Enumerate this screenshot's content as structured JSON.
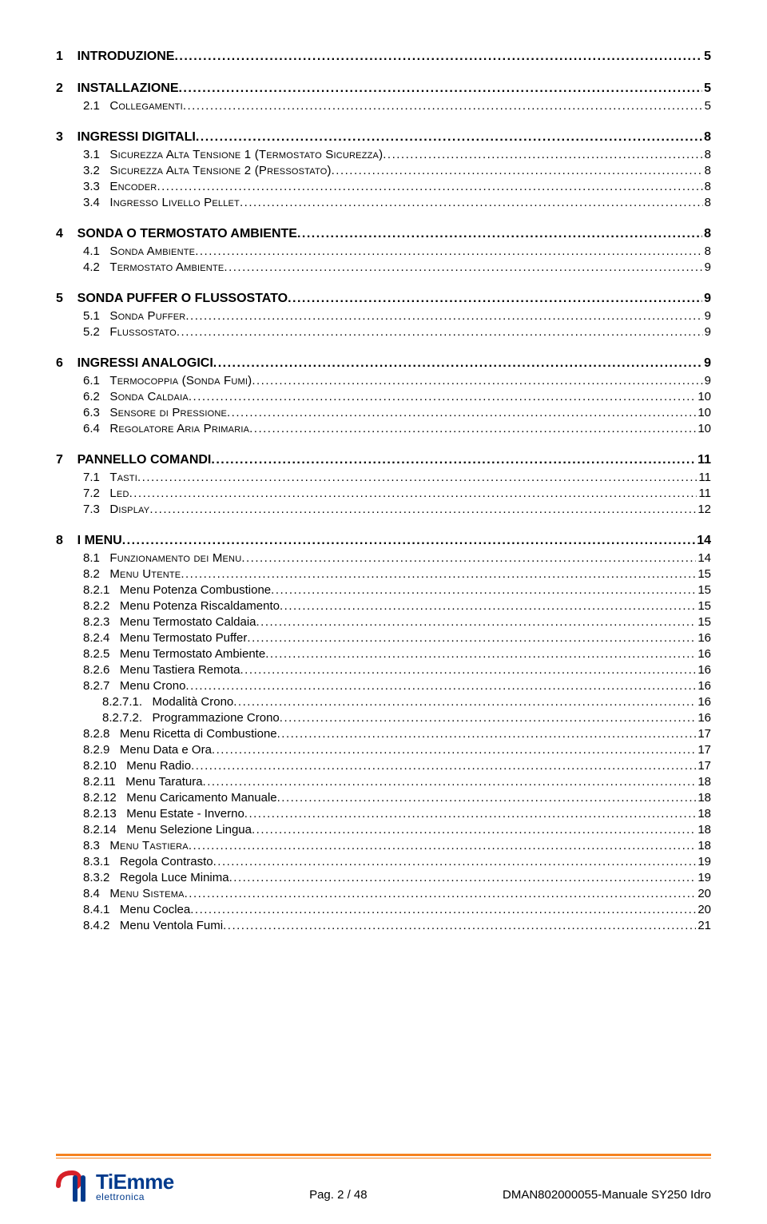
{
  "colors": {
    "text": "#000000",
    "background": "#ffffff",
    "accent_orange": "#f58220",
    "accent_red": "#d62028",
    "accent_blue": "#003a8c"
  },
  "typography": {
    "base_family": "Verdana, Tahoma, sans-serif",
    "lvl1_fontsize": 16,
    "lvl1_fontweight": "bold",
    "lvl2_fontsize": 15,
    "lvl3_fontsize": 15,
    "lvl4_fontsize": 15
  },
  "toc": [
    {
      "level": 1,
      "num": "1",
      "title": "INTRODUZIONE",
      "page": "5"
    },
    {
      "level": 1,
      "num": "2",
      "title": "INSTALLAZIONE",
      "page": "5"
    },
    {
      "level": 2,
      "num": "2.1",
      "title": "Collegamenti",
      "page": "5",
      "smallcaps": true
    },
    {
      "level": 1,
      "num": "3",
      "title": "INGRESSI DIGITALI",
      "page": "8"
    },
    {
      "level": 2,
      "num": "3.1",
      "title": "Sicurezza Alta Tensione 1 (Termostato Sicurezza)",
      "page": "8",
      "smallcaps": true
    },
    {
      "level": 2,
      "num": "3.2",
      "title": "Sicurezza Alta Tensione 2 (Pressostato)",
      "page": "8",
      "smallcaps": true
    },
    {
      "level": 2,
      "num": "3.3",
      "title": "Encoder",
      "page": "8",
      "smallcaps": true
    },
    {
      "level": 2,
      "num": "3.4",
      "title": "Ingresso Livello Pellet",
      "page": "8",
      "smallcaps": true
    },
    {
      "level": 1,
      "num": "4",
      "title": "SONDA O TERMOSTATO AMBIENTE",
      "page": "8"
    },
    {
      "level": 2,
      "num": "4.1",
      "title": "Sonda Ambiente",
      "page": "8",
      "smallcaps": true
    },
    {
      "level": 2,
      "num": "4.2",
      "title": "Termostato Ambiente",
      "page": "9",
      "smallcaps": true
    },
    {
      "level": 1,
      "num": "5",
      "title": "SONDA PUFFER O FLUSSOSTATO",
      "page": "9"
    },
    {
      "level": 2,
      "num": "5.1",
      "title": "Sonda Puffer",
      "page": "9",
      "smallcaps": true
    },
    {
      "level": 2,
      "num": "5.2",
      "title": "Flussostato",
      "page": "9",
      "smallcaps": true
    },
    {
      "level": 1,
      "num": "6",
      "title": "INGRESSI ANALOGICI",
      "page": "9"
    },
    {
      "level": 2,
      "num": "6.1",
      "title": "Termocoppia (Sonda Fumi)",
      "page": "9",
      "smallcaps": true
    },
    {
      "level": 2,
      "num": "6.2",
      "title": "Sonda Caldaia",
      "page": "10",
      "smallcaps": true
    },
    {
      "level": 2,
      "num": "6.3",
      "title": "Sensore di Pressione",
      "page": "10",
      "smallcaps": true
    },
    {
      "level": 2,
      "num": "6.4",
      "title": "Regolatore Aria Primaria",
      "page": "10",
      "smallcaps": true
    },
    {
      "level": 1,
      "num": "7",
      "title": "PANNELLO COMANDI",
      "page": "11"
    },
    {
      "level": 2,
      "num": "7.1",
      "title": "Tasti",
      "page": "11",
      "smallcaps": true
    },
    {
      "level": 2,
      "num": "7.2",
      "title": "Led",
      "page": "11",
      "smallcaps": true
    },
    {
      "level": 2,
      "num": "7.3",
      "title": "Display",
      "page": "12",
      "smallcaps": true
    },
    {
      "level": 1,
      "num": "8",
      "title": "I MENU",
      "page": "14"
    },
    {
      "level": 2,
      "num": "8.1",
      "title": "Funzionamento dei Menu",
      "page": "14",
      "smallcaps": true
    },
    {
      "level": 2,
      "num": "8.2",
      "title": "Menu Utente",
      "page": "15",
      "smallcaps": true
    },
    {
      "level": 3,
      "num": "8.2.1",
      "title": "Menu Potenza Combustione",
      "page": "15"
    },
    {
      "level": 3,
      "num": "8.2.2",
      "title": "Menu Potenza Riscaldamento",
      "page": "15"
    },
    {
      "level": 3,
      "num": "8.2.3",
      "title": "Menu Termostato Caldaia",
      "page": "15"
    },
    {
      "level": 3,
      "num": "8.2.4",
      "title": "Menu Termostato Puffer",
      "page": "16"
    },
    {
      "level": 3,
      "num": "8.2.5",
      "title": "Menu Termostato Ambiente",
      "page": "16"
    },
    {
      "level": 3,
      "num": "8.2.6",
      "title": "Menu Tastiera Remota",
      "page": "16"
    },
    {
      "level": 3,
      "num": "8.2.7",
      "title": "Menu Crono",
      "page": "16"
    },
    {
      "level": 4,
      "num": "8.2.7.1.",
      "title": "Modalità Crono",
      "page": "16"
    },
    {
      "level": 4,
      "num": "8.2.7.2.",
      "title": "Programmazione Crono",
      "page": "16"
    },
    {
      "level": 3,
      "num": "8.2.8",
      "title": "Menu Ricetta di Combustione",
      "page": "17"
    },
    {
      "level": 3,
      "num": "8.2.9",
      "title": "Menu Data e Ora",
      "page": "17"
    },
    {
      "level": 3,
      "num": "8.2.10",
      "title": "Menu Radio",
      "page": "17"
    },
    {
      "level": 3,
      "num": "8.2.11",
      "title": "Menu Taratura",
      "page": "18"
    },
    {
      "level": 3,
      "num": "8.2.12",
      "title": "Menu Caricamento Manuale",
      "page": "18"
    },
    {
      "level": 3,
      "num": "8.2.13",
      "title": "Menu Estate - Inverno",
      "page": "18"
    },
    {
      "level": 3,
      "num": "8.2.14",
      "title": "Menu Selezione Lingua",
      "page": "18"
    },
    {
      "level": 2,
      "num": "8.3",
      "title": "Menu Tastiera",
      "page": "18",
      "smallcaps": true
    },
    {
      "level": 3,
      "num": "8.3.1",
      "title": "Regola Contrasto",
      "page": "19"
    },
    {
      "level": 3,
      "num": "8.3.2",
      "title": "Regola Luce Minima",
      "page": "19"
    },
    {
      "level": 2,
      "num": "8.4",
      "title": "Menu Sistema",
      "page": "20",
      "smallcaps": true
    },
    {
      "level": 3,
      "num": "8.4.1",
      "title": "Menu Coclea",
      "page": "20"
    },
    {
      "level": 3,
      "num": "8.4.2",
      "title": "Menu Ventola Fumi",
      "page": "21"
    }
  ],
  "footer": {
    "logo_main": "TiEmme",
    "logo_sub": "elettronica",
    "page_label": "Pag. 2 / 48",
    "doc_ref": "DMAN802000055-Manuale SY250 Idro"
  }
}
